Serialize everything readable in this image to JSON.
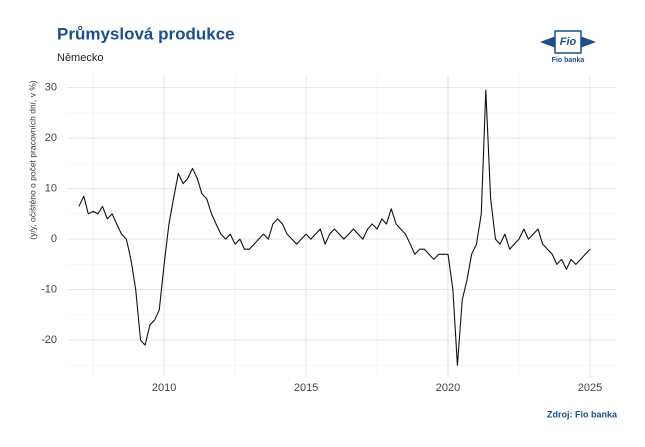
{
  "chart_data": {
    "type": "line",
    "title": "Průmyslová produkce",
    "subtitle": "Německo",
    "y_label": "(y/y, očištěno o počet pracovních dní, v %)",
    "source": "Zdroj: Fio banka",
    "logo": "Fio",
    "logo_caption": "Fio banka",
    "x": [
      2007,
      2007.17,
      2007.33,
      2007.5,
      2007.67,
      2007.83,
      2008,
      2008.17,
      2008.33,
      2008.5,
      2008.67,
      2008.83,
      2009,
      2009.17,
      2009.33,
      2009.5,
      2009.67,
      2009.83,
      2010,
      2010.17,
      2010.33,
      2010.5,
      2010.67,
      2010.83,
      2011,
      2011.17,
      2011.33,
      2011.5,
      2011.67,
      2011.83,
      2012,
      2012.17,
      2012.33,
      2012.5,
      2012.67,
      2012.83,
      2013,
      2013.17,
      2013.33,
      2013.5,
      2013.67,
      2013.83,
      2014,
      2014.17,
      2014.33,
      2014.5,
      2014.67,
      2014.83,
      2015,
      2015.17,
      2015.33,
      2015.5,
      2015.67,
      2015.83,
      2016,
      2016.17,
      2016.33,
      2016.5,
      2016.67,
      2016.83,
      2017,
      2017.17,
      2017.33,
      2017.5,
      2017.67,
      2017.83,
      2018,
      2018.17,
      2018.33,
      2018.5,
      2018.67,
      2018.83,
      2019,
      2019.17,
      2019.33,
      2019.5,
      2019.67,
      2019.83,
      2020,
      2020.17,
      2020.33,
      2020.5,
      2020.67,
      2020.83,
      2021,
      2021.17,
      2021.33,
      2021.5,
      2021.67,
      2021.83,
      2022,
      2022.17,
      2022.33,
      2022.5,
      2022.67,
      2022.83,
      2023,
      2023.17,
      2023.33,
      2023.5,
      2023.67,
      2023.83,
      2024,
      2024.17,
      2024.33,
      2024.5,
      2024.67,
      2024.83,
      2025
    ],
    "series": [
      {
        "name": "Průmyslová produkce",
        "color": "#111111",
        "values": [
          6.5,
          8.5,
          5,
          5.5,
          5,
          6.5,
          4,
          5,
          3,
          1,
          0,
          -4,
          -10,
          -20,
          -21,
          -17,
          -16,
          -14,
          -5,
          3,
          8,
          13,
          11,
          12,
          14,
          12,
          9,
          8,
          5,
          3,
          1,
          0,
          1,
          -1,
          0,
          -2,
          -2,
          -1,
          0,
          1,
          0,
          3,
          4,
          3,
          1,
          0,
          -1,
          0,
          1,
          0,
          1,
          2,
          -1,
          1,
          2,
          1,
          0,
          1,
          2,
          1,
          0,
          2,
          3,
          2,
          4,
          3,
          6,
          3,
          2,
          1,
          -1,
          -3,
          -2,
          -2,
          -3,
          -4,
          -3,
          -3,
          -3,
          -10,
          -25,
          -12,
          -8,
          -3,
          -1,
          5,
          29.5,
          8,
          0,
          -1,
          1,
          -2,
          -1,
          0,
          2,
          0,
          1,
          2,
          -1,
          -2,
          -3,
          -5,
          -4,
          -6,
          -4,
          -5,
          -4,
          -3,
          -2
        ]
      }
    ],
    "xlim": [
      2006.58,
      2025.95
    ],
    "ylim": [
      -27.5,
      32.5
    ],
    "xticks": [
      2010,
      2015,
      2020,
      2025
    ],
    "yticks": [
      -20,
      -10,
      0,
      10,
      20,
      30
    ],
    "grid": true
  }
}
